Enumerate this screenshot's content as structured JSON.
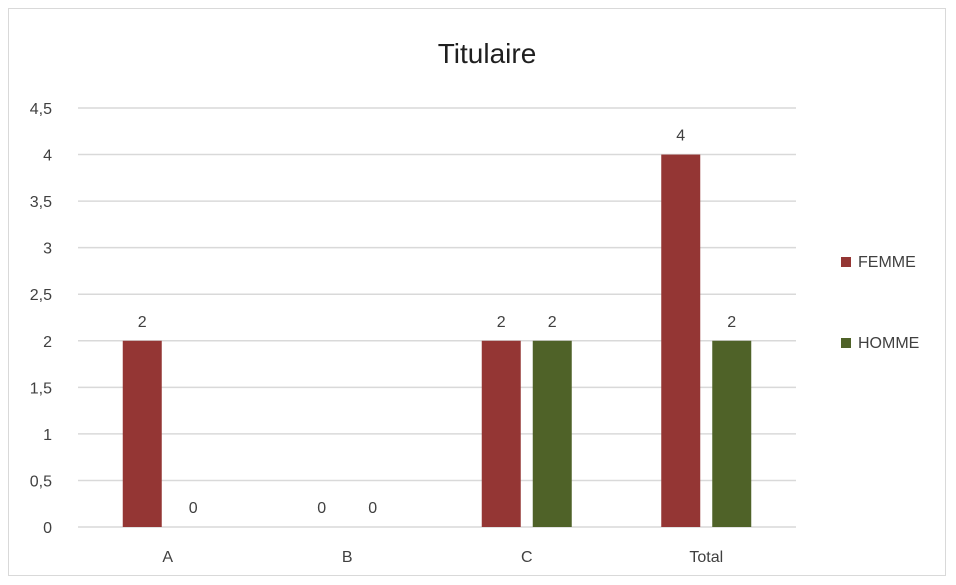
{
  "chart_data": {
    "type": "bar",
    "title": "Titulaire",
    "categories": [
      "A",
      "B",
      "C",
      "Total"
    ],
    "series": [
      {
        "name": "FEMME",
        "values": [
          2,
          0,
          2,
          4
        ],
        "color": "#943634"
      },
      {
        "name": "HOMME",
        "values": [
          0,
          0,
          2,
          2
        ],
        "color": "#4f6228"
      }
    ],
    "y_ticks": [
      "0",
      "0,5",
      "1",
      "1,5",
      "2",
      "2,5",
      "3",
      "3,5",
      "4",
      "4,5"
    ],
    "ylim": [
      0,
      4.5
    ],
    "grid": true,
    "legend_position": "right",
    "data_labels": true
  }
}
